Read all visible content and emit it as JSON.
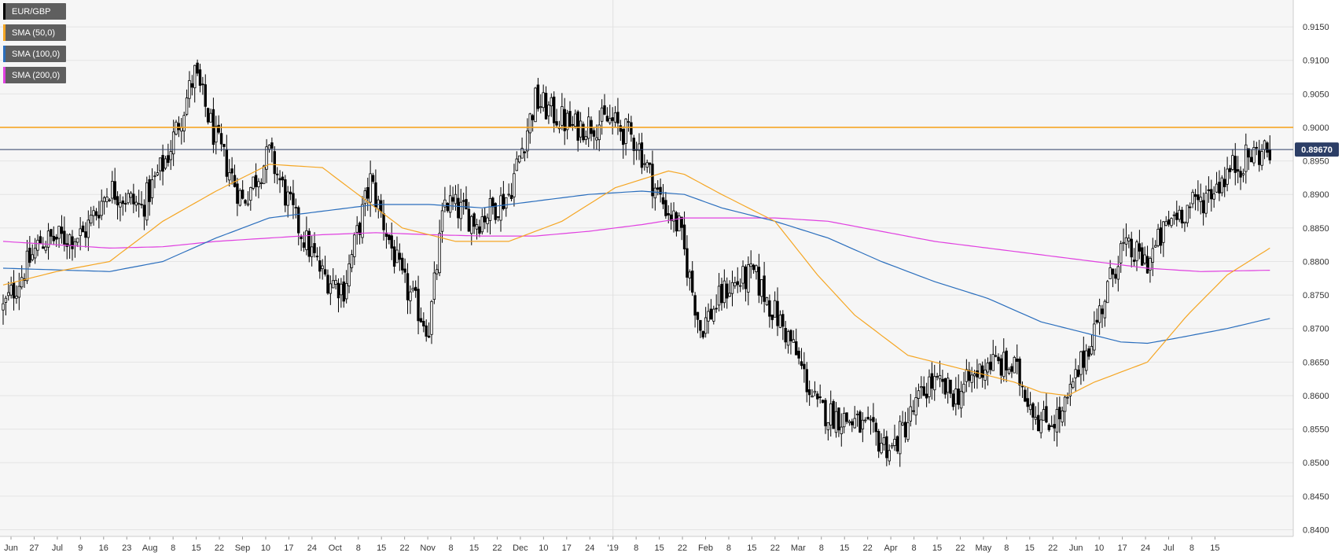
{
  "chart_data": {
    "type": "candlestick",
    "symbol": "EUR/GBP",
    "ylim": [
      0.839,
      0.919
    ],
    "y_ticks": [
      "0.9150",
      "0.9100",
      "0.9050",
      "0.9000",
      "0.8950",
      "0.8900",
      "0.8850",
      "0.8800",
      "0.8750",
      "0.8700",
      "0.8650",
      "0.8600",
      "0.8550",
      "0.8500",
      "0.8450",
      "0.8400"
    ],
    "x_tick_labels": [
      "Jun",
      "27",
      "Jul",
      "9",
      "16",
      "23",
      "Aug",
      "8",
      "15",
      "22",
      "Sep",
      "10",
      "17",
      "24",
      "Oct",
      "8",
      "15",
      "22",
      "Nov",
      "8",
      "15",
      "22",
      "Dec",
      "10",
      "17",
      "24",
      "'19",
      "8",
      "15",
      "22",
      "Feb",
      "8",
      "15",
      "22",
      "Mar",
      "8",
      "15",
      "22",
      "Apr",
      "8",
      "15",
      "22",
      "May",
      "8",
      "15",
      "22",
      "Jun",
      "10",
      "17",
      "24",
      "Jul",
      "8",
      "15"
    ],
    "horizontal_line": {
      "value": 0.9,
      "color": "#f5a623"
    },
    "last_price": {
      "value": 0.8967,
      "label": "0.89670",
      "color": "#2c3e66"
    },
    "candle_colors": {
      "up": "#ffffff",
      "down": "#000000"
    },
    "legend": [
      {
        "label": "EUR/GBP",
        "color": "#000000"
      },
      {
        "label": "SMA (50,0)",
        "color": "#f5a623"
      },
      {
        "label": "SMA (100,0)",
        "color": "#2a6ebd"
      },
      {
        "label": "SMA (200,0)",
        "color": "#e040e0"
      }
    ],
    "close_anchors": [
      [
        0,
        0.873
      ],
      [
        14,
        0.883
      ],
      [
        30,
        0.884
      ],
      [
        40,
        0.891
      ],
      [
        52,
        0.888
      ],
      [
        62,
        0.896
      ],
      [
        72,
        0.908
      ],
      [
        80,
        0.898
      ],
      [
        90,
        0.889
      ],
      [
        100,
        0.896
      ],
      [
        110,
        0.886
      ],
      [
        120,
        0.878
      ],
      [
        128,
        0.876
      ],
      [
        138,
        0.892
      ],
      [
        150,
        0.877
      ],
      [
        160,
        0.87
      ],
      [
        166,
        0.889
      ],
      [
        178,
        0.886
      ],
      [
        190,
        0.89
      ],
      [
        200,
        0.904
      ],
      [
        214,
        0.9
      ],
      [
        228,
        0.901
      ],
      [
        238,
        0.898
      ],
      [
        246,
        0.89
      ],
      [
        254,
        0.885
      ],
      [
        262,
        0.87
      ],
      [
        272,
        0.876
      ],
      [
        282,
        0.878
      ],
      [
        296,
        0.868
      ],
      [
        306,
        0.858
      ],
      [
        320,
        0.856
      ],
      [
        334,
        0.852
      ],
      [
        348,
        0.862
      ],
      [
        358,
        0.86
      ],
      [
        370,
        0.865
      ],
      [
        380,
        0.864
      ],
      [
        390,
        0.856
      ],
      [
        398,
        0.857
      ],
      [
        410,
        0.87
      ],
      [
        420,
        0.882
      ],
      [
        430,
        0.88
      ],
      [
        440,
        0.887
      ],
      [
        450,
        0.889
      ],
      [
        462,
        0.894
      ],
      [
        470,
        0.896
      ],
      [
        476,
        0.8967
      ]
    ],
    "sma50": [
      [
        0,
        0.8765
      ],
      [
        20,
        0.8785
      ],
      [
        40,
        0.88
      ],
      [
        60,
        0.886
      ],
      [
        80,
        0.8905
      ],
      [
        100,
        0.8945
      ],
      [
        120,
        0.894
      ],
      [
        140,
        0.888
      ],
      [
        150,
        0.885
      ],
      [
        170,
        0.883
      ],
      [
        190,
        0.883
      ],
      [
        210,
        0.886
      ],
      [
        230,
        0.891
      ],
      [
        250,
        0.8935
      ],
      [
        256,
        0.893
      ],
      [
        270,
        0.89
      ],
      [
        290,
        0.886
      ],
      [
        306,
        0.878
      ],
      [
        320,
        0.872
      ],
      [
        340,
        0.866
      ],
      [
        360,
        0.864
      ],
      [
        380,
        0.862
      ],
      [
        390,
        0.8605
      ],
      [
        400,
        0.86
      ],
      [
        410,
        0.862
      ],
      [
        430,
        0.865
      ],
      [
        445,
        0.872
      ],
      [
        460,
        0.878
      ],
      [
        476,
        0.882
      ]
    ],
    "sma100": [
      [
        0,
        0.879
      ],
      [
        40,
        0.8785
      ],
      [
        60,
        0.88
      ],
      [
        80,
        0.8835
      ],
      [
        100,
        0.8865
      ],
      [
        120,
        0.8875
      ],
      [
        140,
        0.8885
      ],
      [
        160,
        0.8885
      ],
      [
        180,
        0.888
      ],
      [
        200,
        0.889
      ],
      [
        220,
        0.89
      ],
      [
        240,
        0.8905
      ],
      [
        256,
        0.89
      ],
      [
        270,
        0.888
      ],
      [
        290,
        0.886
      ],
      [
        310,
        0.8835
      ],
      [
        330,
        0.88
      ],
      [
        350,
        0.877
      ],
      [
        370,
        0.8745
      ],
      [
        390,
        0.871
      ],
      [
        410,
        0.869
      ],
      [
        420,
        0.868
      ],
      [
        430,
        0.8678
      ],
      [
        440,
        0.8685
      ],
      [
        460,
        0.87
      ],
      [
        476,
        0.8715
      ]
    ],
    "sma200": [
      [
        0,
        0.883
      ],
      [
        20,
        0.8825
      ],
      [
        40,
        0.882
      ],
      [
        60,
        0.8822
      ],
      [
        80,
        0.883
      ],
      [
        100,
        0.8835
      ],
      [
        120,
        0.884
      ],
      [
        140,
        0.8843
      ],
      [
        160,
        0.884
      ],
      [
        180,
        0.8838
      ],
      [
        200,
        0.8838
      ],
      [
        220,
        0.8845
      ],
      [
        240,
        0.8855
      ],
      [
        256,
        0.8865
      ],
      [
        270,
        0.8865
      ],
      [
        290,
        0.8865
      ],
      [
        310,
        0.886
      ],
      [
        330,
        0.8845
      ],
      [
        350,
        0.883
      ],
      [
        370,
        0.882
      ],
      [
        390,
        0.881
      ],
      [
        410,
        0.88
      ],
      [
        430,
        0.879
      ],
      [
        450,
        0.8785
      ],
      [
        476,
        0.8787
      ]
    ]
  }
}
